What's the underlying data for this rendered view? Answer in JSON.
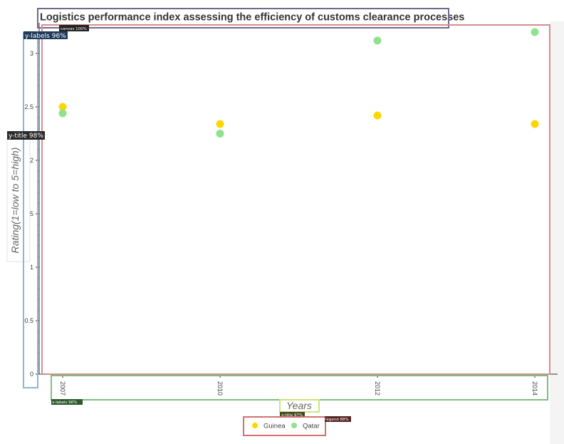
{
  "chart_data": {
    "type": "scatter",
    "title": "Logistics performance index assessing the efficiency of customs clearance processes",
    "xlabel": "Years",
    "ylabel": "Rating(1=low to 5=high)",
    "categories": [
      "2007",
      "2010",
      "2012",
      "2014"
    ],
    "ylim": [
      0,
      3.2
    ],
    "yticks": [
      "0",
      "0.5",
      "1",
      "1.5",
      "2",
      "2.5",
      "3"
    ],
    "grid": false,
    "legend_position": "bottom",
    "series": [
      {
        "name": "Guinea",
        "color": "#FFD700",
        "values": [
          2.5,
          2.34,
          2.42,
          2.34
        ]
      },
      {
        "name": "Qatar",
        "color": "#90E38E",
        "values": [
          2.44,
          2.25,
          3.12,
          3.2
        ]
      }
    ]
  },
  "annotations": [
    {
      "label": "title",
      "color": "#6E6A8E"
    },
    {
      "label": "canvas 100%",
      "color": "#D48E8E"
    },
    {
      "label": "y-labels 96%",
      "color": "#8DB6D8"
    },
    {
      "label": "y-title 98%",
      "color": "#333333"
    },
    {
      "label": "x-labels 96%",
      "color": "#7CC07C"
    },
    {
      "label": "x-title 97%",
      "color": "#C8E67A"
    },
    {
      "label": "legend 88%",
      "color": "#D47070"
    }
  ]
}
